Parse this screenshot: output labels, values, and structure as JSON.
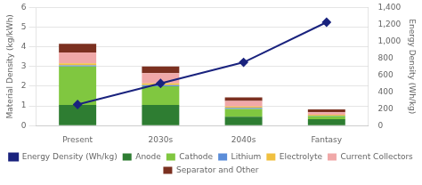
{
  "chart_data": {
    "type": "bar",
    "stacked": true,
    "categories": [
      "Present",
      "2030s",
      "2040s",
      "Fantasy"
    ],
    "series": [
      {
        "name": "Anode",
        "color": "#2e7d32",
        "values": [
          1.05,
          1.05,
          0.45,
          0.32
        ]
      },
      {
        "name": "Cathode",
        "color": "#80c740",
        "values": [
          1.95,
          0.95,
          0.4,
          0.16
        ]
      },
      {
        "name": "Lithium",
        "color": "#5b8dd9",
        "values": [
          0.06,
          0.05,
          0.05,
          0.03
        ]
      },
      {
        "name": "Electrolyte",
        "color": "#f0c040",
        "values": [
          0.1,
          0.09,
          0.07,
          0.04
        ]
      },
      {
        "name": "Current Collectors",
        "color": "#f0a8a8",
        "values": [
          0.55,
          0.52,
          0.28,
          0.13
        ]
      },
      {
        "name": "Separator and Other",
        "color": "#7b3020",
        "values": [
          0.45,
          0.34,
          0.18,
          0.14
        ]
      },
      {
        "name": "Energy\nDensity (Wh/kg)",
        "type": "line",
        "axis": "y2",
        "color": "#1a237e",
        "marker": "diamond",
        "values": [
          250,
          500,
          750,
          1225
        ]
      }
    ],
    "ylabel": "Material Density (kg/kWh)",
    "y2label": "Energy Density (Wh/kg)",
    "ylim": [
      0,
      6
    ],
    "yticks": [
      0,
      1,
      2,
      3,
      4,
      5,
      6
    ],
    "y2lim": [
      0,
      1400
    ],
    "y2ticks": [
      0,
      200,
      400,
      600,
      800,
      {
        "value": 1000,
        "label": "1,000"
      },
      {
        "value": 1200,
        "label": "1,200"
      },
      {
        "value": 1400,
        "label": "1,400"
      }
    ],
    "grid": true,
    "legend": "bottom"
  }
}
